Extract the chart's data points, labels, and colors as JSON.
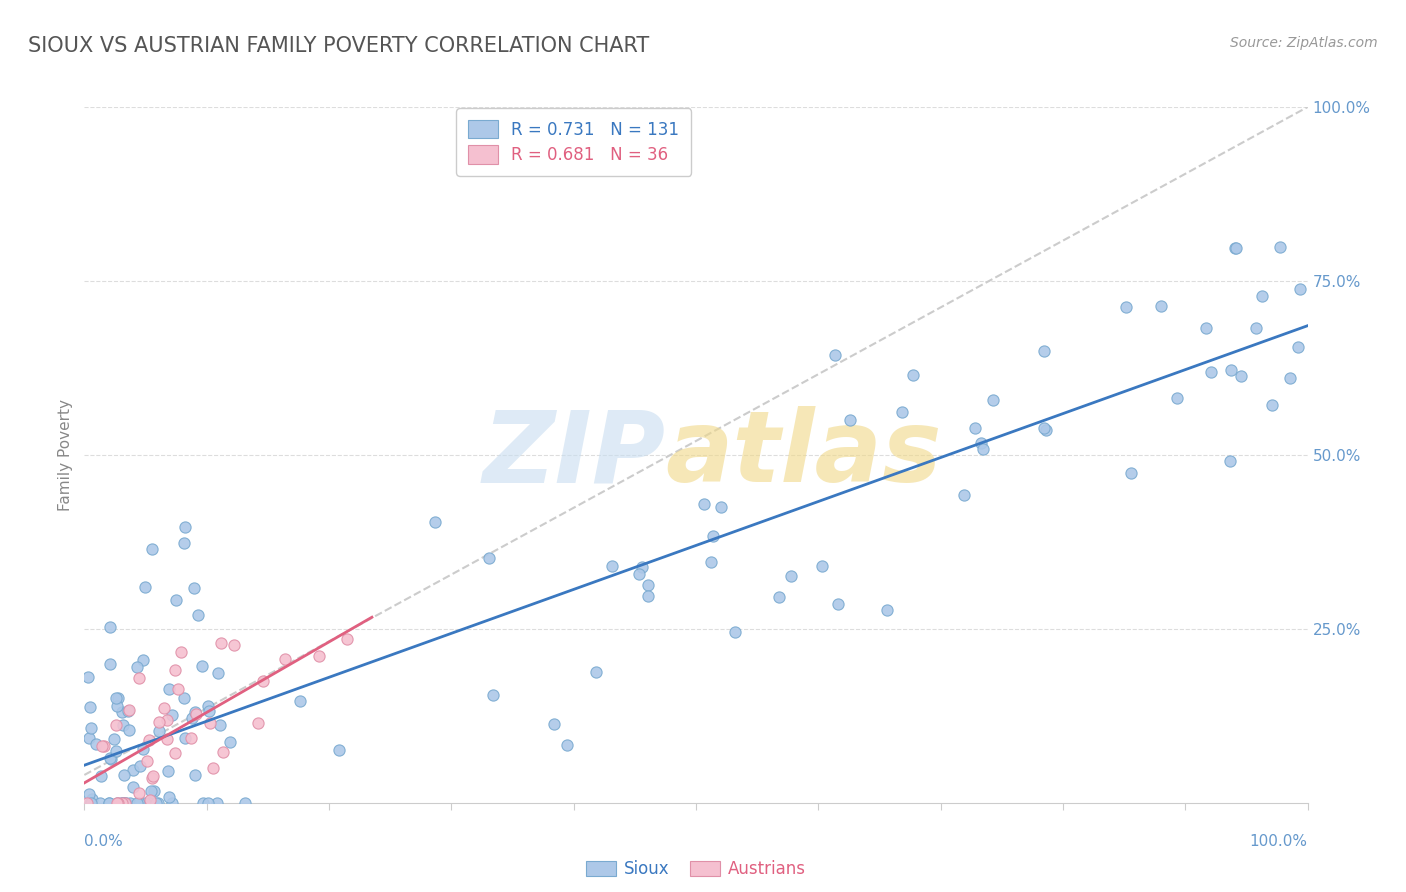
{
  "title": "SIOUX VS AUSTRIAN FAMILY POVERTY CORRELATION CHART",
  "source": "Source: ZipAtlas.com",
  "ylabel": "Family Poverty",
  "sioux_R": 0.731,
  "sioux_N": 131,
  "austrians_R": 0.681,
  "austrians_N": 36,
  "sioux_color": "#adc8e8",
  "sioux_edge_color": "#7aaad0",
  "sioux_line_color": "#3a78c0",
  "austrians_color": "#f5c0d0",
  "austrians_edge_color": "#e090a8",
  "austrians_line_color": "#e06080",
  "dashed_line_color": "#cccccc",
  "background_color": "#ffffff",
  "grid_color": "#dddddd",
  "title_color": "#555555",
  "axis_label_color": "#6699cc",
  "source_color": "#999999",
  "ylabel_color": "#888888"
}
